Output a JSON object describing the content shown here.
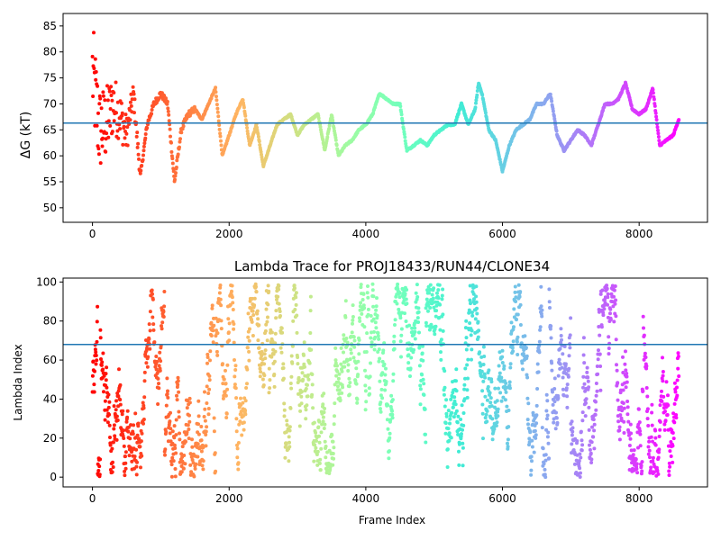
{
  "chart_data": [
    {
      "type": "scatter",
      "title": "",
      "xlabel": "",
      "ylabel": "ΔG (kT)",
      "xlim": [
        -430,
        9000
      ],
      "ylim": [
        47.2,
        87.4
      ],
      "xticks": [
        0,
        2000,
        4000,
        6000,
        8000
      ],
      "xtick_labels": [
        "0",
        "2000",
        "4000",
        "6000",
        "8000"
      ],
      "yticks": [
        50,
        55,
        60,
        65,
        70,
        75,
        80,
        85
      ],
      "ytick_labels": [
        "50",
        "55",
        "60",
        "65",
        "70",
        "75",
        "80",
        "85"
      ],
      "hline": 66.3,
      "hline_color": "#1f77b4",
      "colormap": "rainbow (early frames red, late frames purple)",
      "grid": false,
      "series": [
        {
          "x": [
            0,
            100,
            200,
            300,
            400,
            500,
            600,
            700,
            800,
            900,
            1000,
            1100,
            1200,
            1300,
            1400,
            1500,
            1600,
            1700,
            1800,
            1900,
            2000,
            2100,
            2200,
            2300,
            2400,
            2500,
            2600,
            2700,
            2800,
            2900,
            3000,
            3100,
            3200,
            3300,
            3400,
            3500,
            3600,
            3700,
            3800,
            3900,
            4000,
            4100,
            4200,
            4300,
            4400,
            4500,
            4600,
            4700,
            4800,
            4900,
            5000,
            5100,
            5200,
            5300,
            5400,
            5500,
            5600,
            5650,
            5700,
            5800,
            5900,
            6000,
            6100,
            6200,
            6300,
            6400,
            6500,
            6600,
            6700,
            6800,
            6900,
            7000,
            7100,
            7200,
            7300,
            7400,
            7500,
            7600,
            7700,
            7800,
            7900,
            8000,
            8100,
            8200,
            8300,
            8400,
            8500,
            8580
          ],
          "y": [
            76,
            65,
            66,
            70,
            68,
            64,
            72,
            56,
            66,
            70,
            72,
            70,
            55,
            65,
            68,
            69,
            67,
            70,
            73,
            60,
            64,
            68,
            71,
            62,
            66,
            58,
            62,
            66,
            67,
            68,
            64,
            66,
            67,
            68,
            61,
            68,
            60,
            62,
            63,
            65,
            66,
            68,
            72,
            71,
            70,
            70,
            61,
            62,
            63,
            62,
            64,
            65,
            66,
            66,
            70,
            66,
            69,
            74,
            72,
            65,
            63,
            57,
            62,
            65,
            66,
            67,
            70,
            70,
            72,
            64,
            61,
            63,
            65,
            64,
            62,
            66,
            70,
            70,
            71,
            74,
            69,
            68,
            69,
            73,
            62,
            63,
            64,
            67
          ]
        }
      ]
    },
    {
      "type": "scatter",
      "title": "Lambda Trace for PROJ18433/RUN44/CLONE34",
      "xlabel": "Frame Index",
      "ylabel": "Lambda Index",
      "xlim": [
        -430,
        9000
      ],
      "ylim": [
        -5,
        102
      ],
      "xticks": [
        0,
        2000,
        4000,
        6000,
        8000
      ],
      "xtick_labels": [
        "0",
        "2000",
        "4000",
        "6000",
        "8000"
      ],
      "yticks": [
        0,
        20,
        40,
        60,
        80,
        100
      ],
      "ytick_labels": [
        "0",
        "20",
        "40",
        "60",
        "80",
        "100"
      ],
      "hline": 68,
      "hline_color": "#1f77b4",
      "colormap": "rainbow (early frames red, late frames purple)",
      "grid": false,
      "x_range": [
        0,
        8580
      ],
      "y_range": [
        0,
        99
      ],
      "n_frames": 8580,
      "series": [
        {
          "pattern": "dense vertical random-walk traces spanning lambda index 0 to 99 across frames 0 to 8580"
        }
      ]
    }
  ]
}
